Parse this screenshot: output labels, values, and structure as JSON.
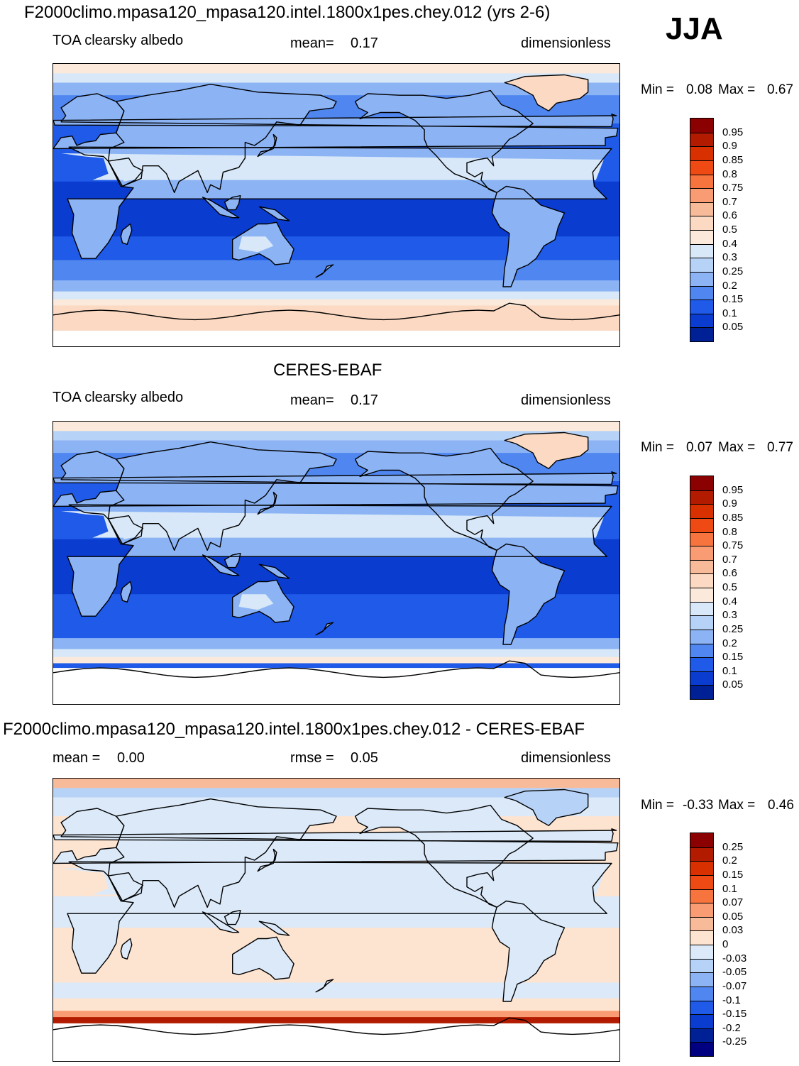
{
  "season": "JJA",
  "panels": [
    {
      "id": "model",
      "title": "F2000climo.mpasa120_mpasa120.intel.1800x1pes.chey.012 (yrs 2-6)",
      "left": "TOA clearsky albedo",
      "stat_label": "mean=",
      "stat_value": "0.17",
      "units": "dimensionless",
      "min_label": "Min =",
      "min_value": "0.08",
      "max_label": "Max =",
      "max_value": "0.67",
      "colorbar_id": "albedo"
    },
    {
      "id": "obs",
      "title": "CERES-EBAF",
      "left": "TOA clearsky albedo",
      "stat_label": "mean=",
      "stat_value": "0.17",
      "units": "dimensionless",
      "min_label": "Min =",
      "min_value": "0.07",
      "max_label": "Max =",
      "max_value": "0.77",
      "colorbar_id": "albedo"
    },
    {
      "id": "diff",
      "title": "F2000climo.mpasa120_mpasa120.intel.1800x1pes.chey.012 - CERES-EBAF",
      "left_label": "mean =",
      "left_value": "0.00",
      "stat_label": "rmse =",
      "stat_value": "0.05",
      "units": "dimensionless",
      "min_label": "Min =",
      "min_value": "-0.33",
      "max_label": "Max =",
      "max_value": "0.46",
      "colorbar_id": "diff"
    }
  ],
  "colorbars": {
    "albedo": {
      "labels": [
        "0.95",
        "0.9",
        "0.85",
        "0.8",
        "0.75",
        "0.7",
        "0.6",
        "0.5",
        "0.4",
        "0.3",
        "0.25",
        "0.2",
        "0.15",
        "0.1",
        "0.05"
      ],
      "colors": [
        "#8b0000",
        "#b31b00",
        "#d93000",
        "#f04a14",
        "#f7743f",
        "#f99c73",
        "#f8bb9a",
        "#fbd9c2",
        "#fbeadb",
        "#d8e8f8",
        "#b7d2f7",
        "#8cb4f5",
        "#4f86f0",
        "#1f5ae8",
        "#0a3cd0",
        "#002196"
      ]
    },
    "diff": {
      "labels": [
        "0.25",
        "0.2",
        "0.15",
        "0.1",
        "0.07",
        "0.05",
        "0.03",
        "0",
        "-0.03",
        "-0.05",
        "-0.07",
        "-0.1",
        "-0.15",
        "-0.2",
        "-0.25"
      ],
      "colors": [
        "#8b0000",
        "#b31b00",
        "#d93000",
        "#f04a14",
        "#f7743f",
        "#f99c73",
        "#f8bb9a",
        "#fde4d0",
        "#dbe9f9",
        "#b7d2f7",
        "#8cb4f5",
        "#4f86f0",
        "#1f5ae8",
        "#0a3cd0",
        "#002196",
        "#000080"
      ]
    }
  },
  "map_fields": {
    "model": {
      "bands": [
        {
          "lat_from": 90,
          "lat_to": 84,
          "value": 0.4
        },
        {
          "lat_from": 84,
          "lat_to": 78,
          "value": 0.3
        },
        {
          "lat_from": 78,
          "lat_to": 70,
          "value": 0.2
        },
        {
          "lat_from": 70,
          "lat_to": 52,
          "value": 0.17
        },
        {
          "lat_from": 52,
          "lat_to": 35,
          "value": 0.14
        },
        {
          "lat_from": 35,
          "lat_to": 15,
          "value": 0.1
        },
        {
          "lat_from": 15,
          "lat_to": -20,
          "value": 0.07
        },
        {
          "lat_from": -20,
          "lat_to": -35,
          "value": 0.1
        },
        {
          "lat_from": -35,
          "lat_to": -48,
          "value": 0.15
        },
        {
          "lat_from": -48,
          "lat_to": -55,
          "value": 0.2
        },
        {
          "lat_from": -55,
          "lat_to": -60,
          "value": 0.35
        },
        {
          "lat_from": -60,
          "lat_to": -64,
          "value": 0.45
        },
        {
          "lat_from": -64,
          "lat_to": -80,
          "value": 0.55
        },
        {
          "lat_from": -80,
          "lat_to": -90,
          "value": null
        }
      ],
      "land": 0.22,
      "desert": 0.3,
      "ice": 0.55
    },
    "obs": {
      "bands": [
        {
          "lat_from": 90,
          "lat_to": 84,
          "value": 0.4
        },
        {
          "lat_from": 84,
          "lat_to": 78,
          "value": 0.27
        },
        {
          "lat_from": 78,
          "lat_to": 70,
          "value": 0.2
        },
        {
          "lat_from": 70,
          "lat_to": 52,
          "value": 0.16
        },
        {
          "lat_from": 52,
          "lat_to": 35,
          "value": 0.13
        },
        {
          "lat_from": 35,
          "lat_to": 15,
          "value": 0.1
        },
        {
          "lat_from": 15,
          "lat_to": -20,
          "value": 0.07
        },
        {
          "lat_from": -20,
          "lat_to": -35,
          "value": 0.1
        },
        {
          "lat_from": -35,
          "lat_to": -48,
          "value": 0.14
        },
        {
          "lat_from": -48,
          "lat_to": -55,
          "value": 0.2
        },
        {
          "lat_from": -55,
          "lat_to": -60,
          "value": 0.3
        },
        {
          "lat_from": -60,
          "lat_to": -64,
          "value": 0.45
        },
        {
          "lat_from": -64,
          "lat_to": -67,
          "value": 0.12
        },
        {
          "lat_from": -67,
          "lat_to": -90,
          "value": null
        }
      ],
      "land": 0.21,
      "desert": 0.3,
      "ice": 0.55
    },
    "diff": {
      "bands": [
        {
          "lat_from": 90,
          "lat_to": 84,
          "value": 0.04
        },
        {
          "lat_from": 84,
          "lat_to": 78,
          "value": -0.04
        },
        {
          "lat_from": 78,
          "lat_to": 66,
          "value": -0.02
        },
        {
          "lat_from": 66,
          "lat_to": 40,
          "value": 0.01
        },
        {
          "lat_from": 40,
          "lat_to": 30,
          "value": 0.01
        },
        {
          "lat_from": 30,
          "lat_to": 15,
          "value": 0.01
        },
        {
          "lat_from": 15,
          "lat_to": -5,
          "value": -0.01
        },
        {
          "lat_from": -5,
          "lat_to": -25,
          "value": 0.01
        },
        {
          "lat_from": -25,
          "lat_to": -40,
          "value": 0.01
        },
        {
          "lat_from": -40,
          "lat_to": -50,
          "value": -0.01
        },
        {
          "lat_from": -50,
          "lat_to": -58,
          "value": 0.02
        },
        {
          "lat_from": -58,
          "lat_to": -62,
          "value": 0.06
        },
        {
          "lat_from": -62,
          "lat_to": -66,
          "value": 0.2
        },
        {
          "lat_from": -66,
          "lat_to": -90,
          "value": null
        }
      ],
      "land": -0.02,
      "desert": -0.01,
      "ice": -0.04
    }
  }
}
